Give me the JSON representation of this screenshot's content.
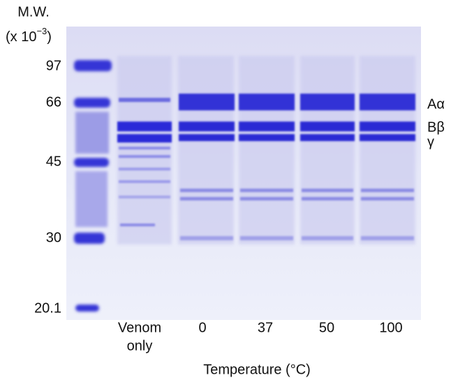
{
  "mw_label": {
    "line1": "M.W.",
    "prefix": "(x 10",
    "exponent": "−3",
    "suffix": ")"
  },
  "mw_markers": [
    "97",
    "66",
    "45",
    "30",
    "20.1"
  ],
  "lanes": [
    {
      "lines": [
        "Venom",
        "only"
      ]
    },
    {
      "lines": [
        "0"
      ]
    },
    {
      "lines": [
        "37"
      ]
    },
    {
      "lines": [
        "50"
      ]
    },
    {
      "lines": [
        "100"
      ]
    }
  ],
  "x_axis_title": "Temperature (°C)",
  "band_labels": [
    "Aα",
    "Bβ",
    "γ"
  ]
}
